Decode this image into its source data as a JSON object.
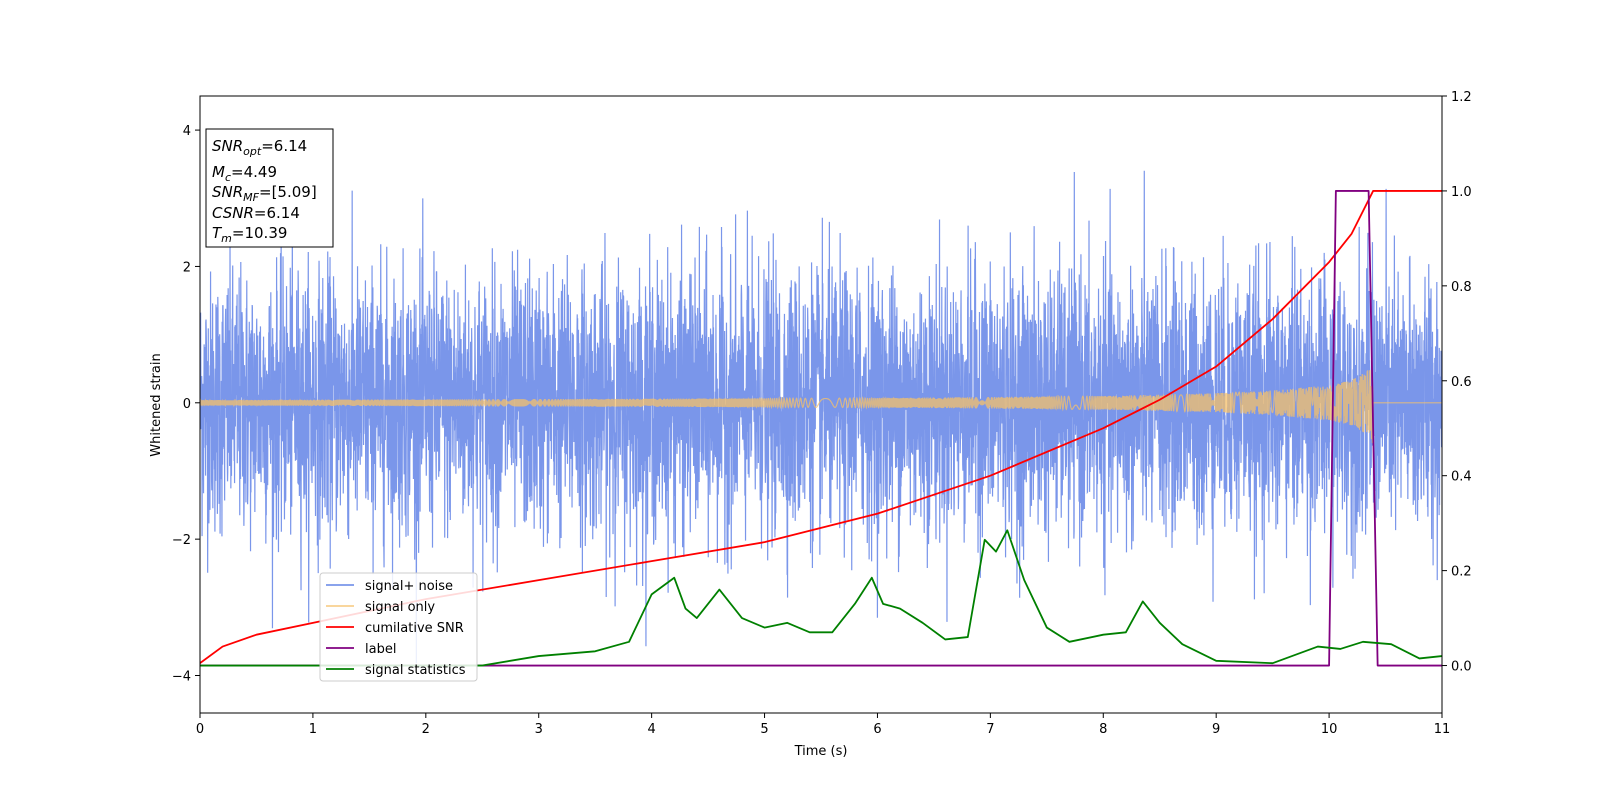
{
  "chart_data": {
    "type": "line",
    "title": "",
    "xlabel": "Time (s)",
    "ylabel": "Whitened strain",
    "y2label": "",
    "xlim": [
      0,
      11
    ],
    "ylim": [
      -4.55,
      4.5
    ],
    "y2lim": [
      -0.1,
      1.2
    ],
    "xticks": [
      0,
      1,
      2,
      3,
      4,
      5,
      6,
      7,
      8,
      9,
      10,
      11
    ],
    "yticks": [
      -4,
      -2,
      0,
      2,
      4
    ],
    "y2ticks": [
      0.0,
      0.2,
      0.4,
      0.6,
      0.8,
      1.0,
      1.2
    ],
    "y2tick_labels": [
      "0.0",
      "0.2",
      "0.4",
      "0.6",
      "0.8",
      "1.0",
      "1.2"
    ],
    "grid": false,
    "legend_position": "lower-left",
    "info_box": {
      "snr_opt": {
        "base": "SNR",
        "sub": "opt",
        "value": "=6.14"
      },
      "mc": {
        "base": "M",
        "sub": "c",
        "value": "=4.49"
      },
      "snr_mf": {
        "base": "SNR",
        "sub": "MF",
        "value": "=[5.09]"
      },
      "csnr": {
        "base": "CSNR",
        "sub": "",
        "value": "=6.14"
      },
      "tm": {
        "base": "T",
        "sub": "m",
        "value": "=10.39"
      }
    },
    "series": [
      {
        "name": "signal+ noise",
        "axis": "left",
        "color": "#4169e1",
        "kind": "noise",
        "sigma": 0.95,
        "spike_max": 4.1,
        "spike_min": -4.15
      },
      {
        "name": "signal only",
        "axis": "left",
        "color": "#f5c06a",
        "kind": "chirp",
        "amplitude_points": [
          [
            0,
            0.04
          ],
          [
            2,
            0.05
          ],
          [
            4,
            0.06
          ],
          [
            6,
            0.07
          ],
          [
            8,
            0.1
          ],
          [
            9,
            0.14
          ],
          [
            9.5,
            0.18
          ],
          [
            10,
            0.26
          ],
          [
            10.2,
            0.33
          ],
          [
            10.35,
            0.48
          ],
          [
            10.39,
            0.62
          ]
        ],
        "end_time": 10.39
      },
      {
        "name": "cumilative SNR",
        "axis": "right",
        "color": "#ff0000",
        "points": [
          [
            0,
            0.005
          ],
          [
            0.2,
            0.04
          ],
          [
            0.5,
            0.065
          ],
          [
            1,
            0.09
          ],
          [
            2,
            0.14
          ],
          [
            3,
            0.18
          ],
          [
            4,
            0.22
          ],
          [
            5,
            0.26
          ],
          [
            6,
            0.32
          ],
          [
            7,
            0.4
          ],
          [
            8,
            0.5
          ],
          [
            8.5,
            0.56
          ],
          [
            9,
            0.63
          ],
          [
            9.5,
            0.73
          ],
          [
            10,
            0.85
          ],
          [
            10.2,
            0.91
          ],
          [
            10.39,
            1.0
          ],
          [
            11,
            1.0
          ]
        ]
      },
      {
        "name": "label",
        "axis": "right",
        "color": "#800080",
        "points": [
          [
            0,
            0
          ],
          [
            10,
            0
          ],
          [
            10.06,
            1.0
          ],
          [
            10.35,
            1.0
          ],
          [
            10.43,
            0
          ],
          [
            11,
            0
          ]
        ]
      },
      {
        "name": "signal statistics",
        "axis": "right",
        "color": "#008000",
        "points": [
          [
            0,
            0.0
          ],
          [
            2.5,
            0.0
          ],
          [
            3.0,
            0.02
          ],
          [
            3.5,
            0.03
          ],
          [
            3.8,
            0.05
          ],
          [
            4.0,
            0.15
          ],
          [
            4.2,
            0.185
          ],
          [
            4.3,
            0.12
          ],
          [
            4.4,
            0.1
          ],
          [
            4.6,
            0.16
          ],
          [
            4.8,
            0.1
          ],
          [
            5.0,
            0.08
          ],
          [
            5.2,
            0.09
          ],
          [
            5.4,
            0.07
          ],
          [
            5.6,
            0.07
          ],
          [
            5.8,
            0.13
          ],
          [
            5.95,
            0.185
          ],
          [
            6.05,
            0.13
          ],
          [
            6.2,
            0.12
          ],
          [
            6.4,
            0.09
          ],
          [
            6.6,
            0.055
          ],
          [
            6.8,
            0.06
          ],
          [
            6.95,
            0.265
          ],
          [
            7.05,
            0.24
          ],
          [
            7.15,
            0.285
          ],
          [
            7.3,
            0.18
          ],
          [
            7.5,
            0.08
          ],
          [
            7.7,
            0.05
          ],
          [
            8.0,
            0.065
          ],
          [
            8.2,
            0.07
          ],
          [
            8.35,
            0.135
          ],
          [
            8.5,
            0.09
          ],
          [
            8.7,
            0.045
          ],
          [
            9.0,
            0.01
          ],
          [
            9.5,
            0.005
          ],
          [
            9.9,
            0.04
          ],
          [
            10.1,
            0.035
          ],
          [
            10.3,
            0.05
          ],
          [
            10.55,
            0.045
          ],
          [
            10.8,
            0.015
          ],
          [
            11.0,
            0.02
          ]
        ]
      }
    ]
  }
}
